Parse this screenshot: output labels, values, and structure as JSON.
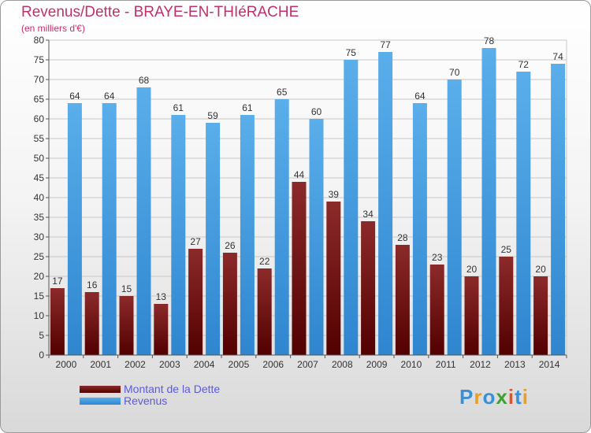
{
  "chart_data": {
    "type": "bar",
    "title": "Revenus/Dette - BRAYE-EN-THIéRACHE",
    "subtitle": "(en milliers d'€)",
    "categories": [
      "2000",
      "2001",
      "2002",
      "2003",
      "2004",
      "2005",
      "2006",
      "2007",
      "2008",
      "2009",
      "2010",
      "2011",
      "2012",
      "2013",
      "2014"
    ],
    "series": [
      {
        "name": "Montant de la Dette",
        "color": "#7a1010",
        "values": [
          17,
          16,
          15,
          13,
          27,
          26,
          22,
          44,
          39,
          34,
          28,
          23,
          20,
          25,
          20
        ]
      },
      {
        "name": "Revenus",
        "color": "#4fa6e6",
        "values": [
          64,
          64,
          68,
          61,
          59,
          61,
          65,
          60,
          75,
          77,
          64,
          70,
          78,
          72,
          74
        ]
      }
    ],
    "ylim": [
      0,
      80
    ],
    "yticks": [
      0,
      5,
      10,
      15,
      20,
      25,
      30,
      35,
      40,
      45,
      50,
      55,
      60,
      65,
      70,
      75,
      80
    ],
    "grid": true,
    "legend": "bottom-left"
  },
  "logo": {
    "letters": [
      "P",
      "r",
      "o",
      "x",
      "i",
      "t",
      "i"
    ],
    "colors": [
      "#3a8fd9",
      "#e8a020",
      "#3a8fd9",
      "#40a030",
      "#e85020",
      "#3a8fd9",
      "#e8a020"
    ]
  }
}
